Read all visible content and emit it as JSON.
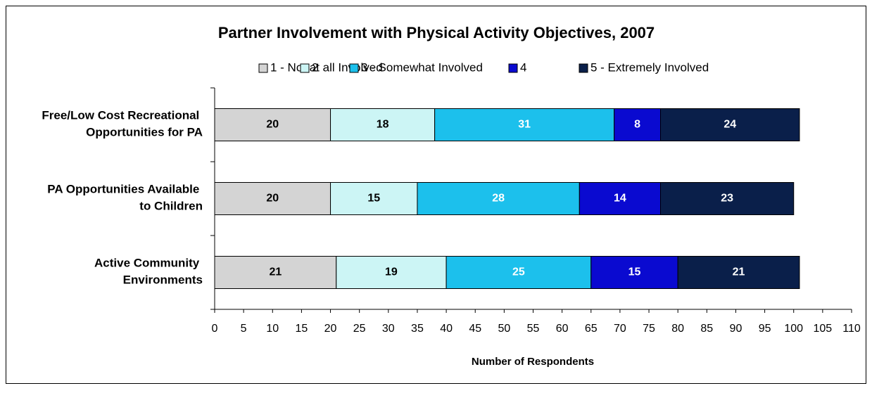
{
  "chart_data": {
    "type": "stacked_barh",
    "title": "Partner Involvement with Physical Activity Objectives, 2007",
    "categories": [
      "Free/Low Cost Recreational Opportunities for PA",
      "PA Opportunities Available to Children",
      "Active Community Environments"
    ],
    "series": [
      {
        "name": "1 - Not at all Involved",
        "color": "#d4d4d4",
        "label_color": "#000000",
        "values": [
          20,
          20,
          21
        ]
      },
      {
        "name": "2",
        "color": "#ccf5f5",
        "label_color": "#000000",
        "values": [
          18,
          15,
          19
        ]
      },
      {
        "name": "3 - Somewhat Involved",
        "color": "#1cc0ec",
        "label_color": "#ffffff",
        "values": [
          31,
          28,
          25
        ]
      },
      {
        "name": "4",
        "color": "#0a0ad0",
        "label_color": "#ffffff",
        "values": [
          8,
          14,
          15
        ]
      },
      {
        "name": "5 - Extremely Involved",
        "color": "#0a1f4a",
        "label_color": "#ffffff",
        "values": [
          24,
          23,
          21
        ]
      }
    ],
    "xlabel": "Number of Respondents",
    "xlim": [
      0,
      110
    ],
    "xticks": [
      0,
      5,
      10,
      15,
      20,
      25,
      30,
      35,
      40,
      45,
      50,
      55,
      60,
      65,
      70,
      75,
      80,
      85,
      90,
      95,
      100,
      105,
      110
    ],
    "grid": false,
    "legend": "top"
  }
}
